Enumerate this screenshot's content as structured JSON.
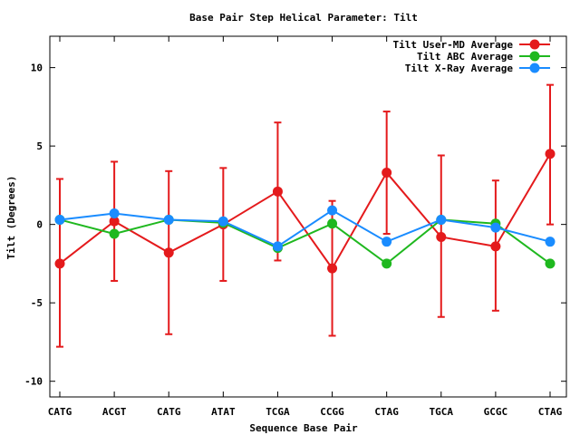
{
  "chart_data": {
    "type": "line",
    "title": "Base Pair Step Helical Parameter: Tilt",
    "xlabel": "Sequence Base Pair",
    "ylabel": "Tilt (Degrees)",
    "categories": [
      "CATG",
      "ACGT",
      "CATG",
      "ATAT",
      "TCGA",
      "CCGG",
      "CTAG",
      "TGCA",
      "GCGC",
      "CTAG"
    ],
    "ylim": [
      -11,
      12
    ],
    "yticks": [
      "-10",
      "-5",
      "0",
      "5",
      "10"
    ],
    "grid": false,
    "legend_position": "top-right",
    "series": [
      {
        "name": "Tilt User-MD Average",
        "color": "#e41a1c",
        "values": [
          -2.5,
          0.2,
          -1.8,
          0.0,
          2.1,
          -2.8,
          3.3,
          -0.8,
          -1.4,
          4.5
        ],
        "error_low": [
          -7.8,
          -3.6,
          -7.0,
          -3.6,
          -2.3,
          -7.1,
          -0.6,
          -5.9,
          -5.5,
          0.0
        ],
        "error_high": [
          2.9,
          4.0,
          3.4,
          3.6,
          6.5,
          1.5,
          7.2,
          4.4,
          2.8,
          8.9
        ]
      },
      {
        "name": "Tilt ABC Average",
        "color": "#1fb81f",
        "values": [
          0.3,
          -0.6,
          0.3,
          0.1,
          -1.5,
          0.05,
          -2.5,
          0.3,
          0.05,
          -2.5
        ]
      },
      {
        "name": "Tilt X-Ray Average",
        "color": "#1a8cff",
        "values": [
          0.3,
          0.7,
          0.3,
          0.2,
          -1.4,
          0.9,
          -1.1,
          0.3,
          -0.2,
          -1.1
        ]
      }
    ]
  }
}
